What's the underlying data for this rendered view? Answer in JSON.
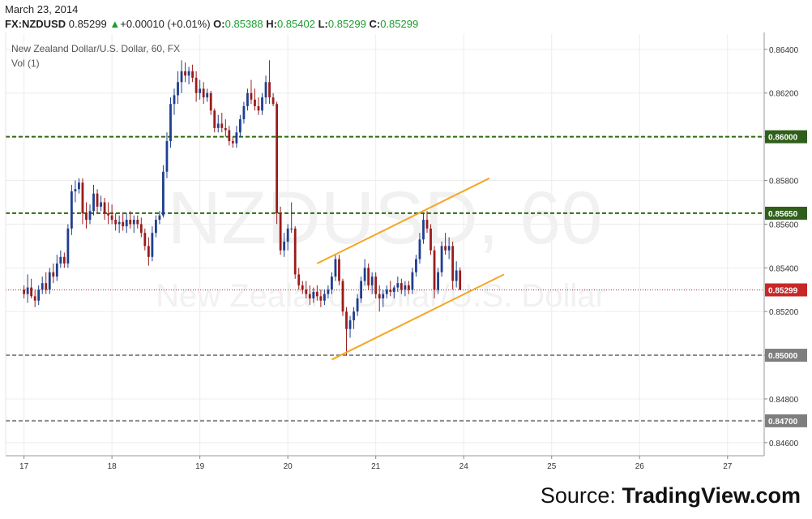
{
  "header": {
    "date": "March 23, 2014",
    "symbol": "FX:NZDUSD",
    "last": "0.85299",
    "arrow": "▲",
    "change": "+0.00010 (+0.01%)",
    "o_label": "O:",
    "o_value": "0.85388",
    "h_label": "H:",
    "h_value": "0.85402",
    "l_label": "L:",
    "l_value": "0.85299",
    "c_label": "C:",
    "c_value": "0.85299"
  },
  "footer": {
    "source_label": "Source:",
    "source_name": "TradingView.com"
  },
  "colors": {
    "up": "#1f3f8f",
    "down": "#9a1c1c",
    "green_level": "#2d6a12",
    "grey_level": "#8c8c8c",
    "channel": "#f5a623",
    "price_line": "#b22222",
    "header_up": "#1a9c2e"
  },
  "chart_data": {
    "type": "candlestick",
    "title": "New Zealand Dollar/U.S. Dollar, 60, FX",
    "subtitle": "Vol (1)",
    "watermark_symbol": "NZDUSD, 60",
    "watermark_name": "New Zealand Dollar/U.S. Dollar",
    "x_ticks": [
      {
        "label": "17",
        "t": 0
      },
      {
        "label": "18",
        "t": 24
      },
      {
        "label": "19",
        "t": 48
      },
      {
        "label": "20",
        "t": 72
      },
      {
        "label": "21",
        "t": 96
      },
      {
        "label": "24",
        "t": 120
      },
      {
        "label": "25",
        "t": 144
      },
      {
        "label": "26",
        "t": 168
      },
      {
        "label": "27",
        "t": 192
      }
    ],
    "y_ticks": [
      "0.86400",
      "0.86200",
      "0.86000",
      "0.85800",
      "0.85600",
      "0.85400",
      "0.85200",
      "0.85000",
      "0.84800",
      "0.84600"
    ],
    "y_range": [
      0.8454,
      0.8647
    ],
    "x_range": [
      -5,
      202
    ],
    "horizontal_levels": [
      {
        "value": 0.86,
        "label": "0.86000",
        "style": "green"
      },
      {
        "value": 0.8565,
        "label": "0.85650",
        "style": "green"
      },
      {
        "value": 0.85,
        "label": "0.85000",
        "style": "grey"
      },
      {
        "value": 0.847,
        "label": "0.84700",
        "style": "grey"
      }
    ],
    "last_price": {
      "value": 0.85299,
      "label": "0.85299"
    },
    "channel_lines": [
      {
        "t1": 80,
        "v1": 0.8542,
        "t2": 127,
        "v2": 0.8581
      },
      {
        "t1": 84,
        "v1": 0.8498,
        "t2": 131,
        "v2": 0.8537
      }
    ],
    "candles": [
      {
        "o": 0.853,
        "h": 0.8532,
        "l": 0.8526,
        "c": 0.8528
      },
      {
        "o": 0.8528,
        "h": 0.8537,
        "l": 0.8524,
        "c": 0.8531
      },
      {
        "o": 0.8531,
        "h": 0.8535,
        "l": 0.8526,
        "c": 0.8527
      },
      {
        "o": 0.8527,
        "h": 0.853,
        "l": 0.8522,
        "c": 0.8525
      },
      {
        "o": 0.8525,
        "h": 0.8532,
        "l": 0.8523,
        "c": 0.853
      },
      {
        "o": 0.853,
        "h": 0.8536,
        "l": 0.8528,
        "c": 0.8533
      },
      {
        "o": 0.8533,
        "h": 0.8538,
        "l": 0.8528,
        "c": 0.853
      },
      {
        "o": 0.853,
        "h": 0.854,
        "l": 0.8528,
        "c": 0.8538
      },
      {
        "o": 0.8538,
        "h": 0.8542,
        "l": 0.8533,
        "c": 0.8536
      },
      {
        "o": 0.8536,
        "h": 0.8546,
        "l": 0.8534,
        "c": 0.8542
      },
      {
        "o": 0.8542,
        "h": 0.8548,
        "l": 0.854,
        "c": 0.8545
      },
      {
        "o": 0.8545,
        "h": 0.8547,
        "l": 0.854,
        "c": 0.8542
      },
      {
        "o": 0.8542,
        "h": 0.856,
        "l": 0.854,
        "c": 0.8558
      },
      {
        "o": 0.8558,
        "h": 0.8578,
        "l": 0.8555,
        "c": 0.8575
      },
      {
        "o": 0.8575,
        "h": 0.858,
        "l": 0.857,
        "c": 0.8576
      },
      {
        "o": 0.8576,
        "h": 0.8581,
        "l": 0.8574,
        "c": 0.8579
      },
      {
        "o": 0.8579,
        "h": 0.8581,
        "l": 0.856,
        "c": 0.8565
      },
      {
        "o": 0.8565,
        "h": 0.857,
        "l": 0.8558,
        "c": 0.8562
      },
      {
        "o": 0.8562,
        "h": 0.8569,
        "l": 0.856,
        "c": 0.8566
      },
      {
        "o": 0.8566,
        "h": 0.8578,
        "l": 0.8564,
        "c": 0.8574
      },
      {
        "o": 0.8574,
        "h": 0.8576,
        "l": 0.8565,
        "c": 0.8568
      },
      {
        "o": 0.8568,
        "h": 0.8573,
        "l": 0.8566,
        "c": 0.857
      },
      {
        "o": 0.857,
        "h": 0.8572,
        "l": 0.8562,
        "c": 0.8565
      },
      {
        "o": 0.8565,
        "h": 0.857,
        "l": 0.856,
        "c": 0.8564
      },
      {
        "o": 0.8564,
        "h": 0.8569,
        "l": 0.856,
        "c": 0.8562
      },
      {
        "o": 0.8562,
        "h": 0.8565,
        "l": 0.8557,
        "c": 0.856
      },
      {
        "o": 0.856,
        "h": 0.8564,
        "l": 0.8556,
        "c": 0.8561
      },
      {
        "o": 0.8561,
        "h": 0.8565,
        "l": 0.8557,
        "c": 0.8559
      },
      {
        "o": 0.8559,
        "h": 0.8565,
        "l": 0.8556,
        "c": 0.8562
      },
      {
        "o": 0.8562,
        "h": 0.8566,
        "l": 0.8558,
        "c": 0.856
      },
      {
        "o": 0.856,
        "h": 0.8564,
        "l": 0.8556,
        "c": 0.8562
      },
      {
        "o": 0.8562,
        "h": 0.8564,
        "l": 0.8558,
        "c": 0.856
      },
      {
        "o": 0.856,
        "h": 0.8563,
        "l": 0.8554,
        "c": 0.8556
      },
      {
        "o": 0.8556,
        "h": 0.8558,
        "l": 0.8548,
        "c": 0.855
      },
      {
        "o": 0.855,
        "h": 0.8554,
        "l": 0.8541,
        "c": 0.8545
      },
      {
        "o": 0.8545,
        "h": 0.8559,
        "l": 0.8543,
        "c": 0.8556
      },
      {
        "o": 0.8556,
        "h": 0.8564,
        "l": 0.8554,
        "c": 0.8562
      },
      {
        "o": 0.8562,
        "h": 0.8566,
        "l": 0.856,
        "c": 0.8564
      },
      {
        "o": 0.8564,
        "h": 0.8587,
        "l": 0.8563,
        "c": 0.8584
      },
      {
        "o": 0.8584,
        "h": 0.8602,
        "l": 0.8581,
        "c": 0.8598
      },
      {
        "o": 0.8598,
        "h": 0.8618,
        "l": 0.8595,
        "c": 0.8615
      },
      {
        "o": 0.8615,
        "h": 0.8622,
        "l": 0.861,
        "c": 0.8619
      },
      {
        "o": 0.8619,
        "h": 0.863,
        "l": 0.8615,
        "c": 0.8625
      },
      {
        "o": 0.8625,
        "h": 0.8635,
        "l": 0.862,
        "c": 0.863
      },
      {
        "o": 0.863,
        "h": 0.8634,
        "l": 0.8625,
        "c": 0.8628
      },
      {
        "o": 0.8628,
        "h": 0.8632,
        "l": 0.8624,
        "c": 0.863
      },
      {
        "o": 0.863,
        "h": 0.8633,
        "l": 0.8625,
        "c": 0.8627
      },
      {
        "o": 0.8627,
        "h": 0.863,
        "l": 0.8616,
        "c": 0.862
      },
      {
        "o": 0.862,
        "h": 0.8626,
        "l": 0.8617,
        "c": 0.8622
      },
      {
        "o": 0.8622,
        "h": 0.8625,
        "l": 0.8615,
        "c": 0.8618
      },
      {
        "o": 0.8618,
        "h": 0.8622,
        "l": 0.8616,
        "c": 0.862
      },
      {
        "o": 0.862,
        "h": 0.8621,
        "l": 0.861,
        "c": 0.8612
      },
      {
        "o": 0.8612,
        "h": 0.8613,
        "l": 0.8602,
        "c": 0.8604
      },
      {
        "o": 0.8604,
        "h": 0.861,
        "l": 0.8602,
        "c": 0.8606
      },
      {
        "o": 0.8606,
        "h": 0.8611,
        "l": 0.8602,
        "c": 0.8604
      },
      {
        "o": 0.8604,
        "h": 0.8608,
        "l": 0.86,
        "c": 0.8603
      },
      {
        "o": 0.8603,
        "h": 0.8605,
        "l": 0.8596,
        "c": 0.8598
      },
      {
        "o": 0.8598,
        "h": 0.86,
        "l": 0.8595,
        "c": 0.8597
      },
      {
        "o": 0.8597,
        "h": 0.8605,
        "l": 0.8595,
        "c": 0.8602
      },
      {
        "o": 0.8602,
        "h": 0.861,
        "l": 0.86,
        "c": 0.8608
      },
      {
        "o": 0.8608,
        "h": 0.8616,
        "l": 0.8606,
        "c": 0.8614
      },
      {
        "o": 0.8614,
        "h": 0.8622,
        "l": 0.8612,
        "c": 0.862
      },
      {
        "o": 0.862,
        "h": 0.8626,
        "l": 0.8615,
        "c": 0.8617
      },
      {
        "o": 0.8617,
        "h": 0.8622,
        "l": 0.8612,
        "c": 0.8614
      },
      {
        "o": 0.8614,
        "h": 0.8618,
        "l": 0.861,
        "c": 0.8612
      },
      {
        "o": 0.8612,
        "h": 0.862,
        "l": 0.861,
        "c": 0.8618
      },
      {
        "o": 0.8618,
        "h": 0.8628,
        "l": 0.8615,
        "c": 0.8625
      },
      {
        "o": 0.8625,
        "h": 0.8635,
        "l": 0.8615,
        "c": 0.8618
      },
      {
        "o": 0.8618,
        "h": 0.862,
        "l": 0.8614,
        "c": 0.8615
      },
      {
        "o": 0.8615,
        "h": 0.8616,
        "l": 0.856,
        "c": 0.8565
      },
      {
        "o": 0.8565,
        "h": 0.8568,
        "l": 0.8546,
        "c": 0.8548
      },
      {
        "o": 0.8548,
        "h": 0.8556,
        "l": 0.8545,
        "c": 0.8552
      },
      {
        "o": 0.8552,
        "h": 0.856,
        "l": 0.8548,
        "c": 0.8558
      },
      {
        "o": 0.8558,
        "h": 0.857,
        "l": 0.8556,
        "c": 0.8558
      },
      {
        "o": 0.8558,
        "h": 0.8559,
        "l": 0.8535,
        "c": 0.8537
      },
      {
        "o": 0.8537,
        "h": 0.854,
        "l": 0.853,
        "c": 0.8532
      },
      {
        "o": 0.8532,
        "h": 0.8534,
        "l": 0.8528,
        "c": 0.853
      },
      {
        "o": 0.853,
        "h": 0.8534,
        "l": 0.8526,
        "c": 0.8528
      },
      {
        "o": 0.8528,
        "h": 0.8532,
        "l": 0.8523,
        "c": 0.8526
      },
      {
        "o": 0.8526,
        "h": 0.8531,
        "l": 0.8524,
        "c": 0.8529
      },
      {
        "o": 0.8529,
        "h": 0.8532,
        "l": 0.8525,
        "c": 0.8527
      },
      {
        "o": 0.8527,
        "h": 0.853,
        "l": 0.8522,
        "c": 0.8525
      },
      {
        "o": 0.8525,
        "h": 0.853,
        "l": 0.8523,
        "c": 0.8528
      },
      {
        "o": 0.8528,
        "h": 0.8532,
        "l": 0.8526,
        "c": 0.853
      },
      {
        "o": 0.853,
        "h": 0.8538,
        "l": 0.8528,
        "c": 0.8536
      },
      {
        "o": 0.8536,
        "h": 0.8546,
        "l": 0.8534,
        "c": 0.8544
      },
      {
        "o": 0.8544,
        "h": 0.8546,
        "l": 0.8532,
        "c": 0.8534
      },
      {
        "o": 0.8534,
        "h": 0.8535,
        "l": 0.8518,
        "c": 0.852
      },
      {
        "o": 0.852,
        "h": 0.8522,
        "l": 0.85,
        "c": 0.8512
      },
      {
        "o": 0.8512,
        "h": 0.8518,
        "l": 0.8508,
        "c": 0.8516
      },
      {
        "o": 0.8516,
        "h": 0.8522,
        "l": 0.8512,
        "c": 0.852
      },
      {
        "o": 0.852,
        "h": 0.8528,
        "l": 0.8518,
        "c": 0.8526
      },
      {
        "o": 0.8526,
        "h": 0.8536,
        "l": 0.8524,
        "c": 0.8534
      },
      {
        "o": 0.8534,
        "h": 0.8544,
        "l": 0.8532,
        "c": 0.854
      },
      {
        "o": 0.854,
        "h": 0.8542,
        "l": 0.853,
        "c": 0.8532
      },
      {
        "o": 0.8532,
        "h": 0.8538,
        "l": 0.8528,
        "c": 0.8536
      },
      {
        "o": 0.8536,
        "h": 0.8538,
        "l": 0.8526,
        "c": 0.8528
      },
      {
        "o": 0.8528,
        "h": 0.8532,
        "l": 0.852,
        "c": 0.8526
      },
      {
        "o": 0.8526,
        "h": 0.853,
        "l": 0.8522,
        "c": 0.8528
      },
      {
        "o": 0.8528,
        "h": 0.8532,
        "l": 0.8526,
        "c": 0.853
      },
      {
        "o": 0.853,
        "h": 0.8534,
        "l": 0.8527,
        "c": 0.8529
      },
      {
        "o": 0.8529,
        "h": 0.8532,
        "l": 0.8526,
        "c": 0.8531
      },
      {
        "o": 0.8531,
        "h": 0.8536,
        "l": 0.8529,
        "c": 0.8533
      },
      {
        "o": 0.8533,
        "h": 0.8535,
        "l": 0.8528,
        "c": 0.853
      },
      {
        "o": 0.853,
        "h": 0.8534,
        "l": 0.8527,
        "c": 0.8532
      },
      {
        "o": 0.8532,
        "h": 0.8534,
        "l": 0.8528,
        "c": 0.853
      },
      {
        "o": 0.853,
        "h": 0.854,
        "l": 0.8528,
        "c": 0.8538
      },
      {
        "o": 0.8538,
        "h": 0.8546,
        "l": 0.8536,
        "c": 0.8544
      },
      {
        "o": 0.8544,
        "h": 0.8556,
        "l": 0.8542,
        "c": 0.8553
      },
      {
        "o": 0.8553,
        "h": 0.8565,
        "l": 0.8551,
        "c": 0.8562
      },
      {
        "o": 0.8562,
        "h": 0.8566,
        "l": 0.8556,
        "c": 0.8558
      },
      {
        "o": 0.8558,
        "h": 0.856,
        "l": 0.8546,
        "c": 0.8548
      },
      {
        "o": 0.8548,
        "h": 0.855,
        "l": 0.8526,
        "c": 0.853
      },
      {
        "o": 0.853,
        "h": 0.854,
        "l": 0.8528,
        "c": 0.8538
      },
      {
        "o": 0.8538,
        "h": 0.8552,
        "l": 0.8536,
        "c": 0.855
      },
      {
        "o": 0.855,
        "h": 0.8556,
        "l": 0.8546,
        "c": 0.8548
      },
      {
        "o": 0.8548,
        "h": 0.8554,
        "l": 0.8544,
        "c": 0.855
      },
      {
        "o": 0.855,
        "h": 0.8552,
        "l": 0.853,
        "c": 0.8534
      },
      {
        "o": 0.8534,
        "h": 0.8543,
        "l": 0.8531,
        "c": 0.85388
      },
      {
        "o": 0.85388,
        "h": 0.85402,
        "l": 0.85299,
        "c": 0.85299
      }
    ]
  }
}
